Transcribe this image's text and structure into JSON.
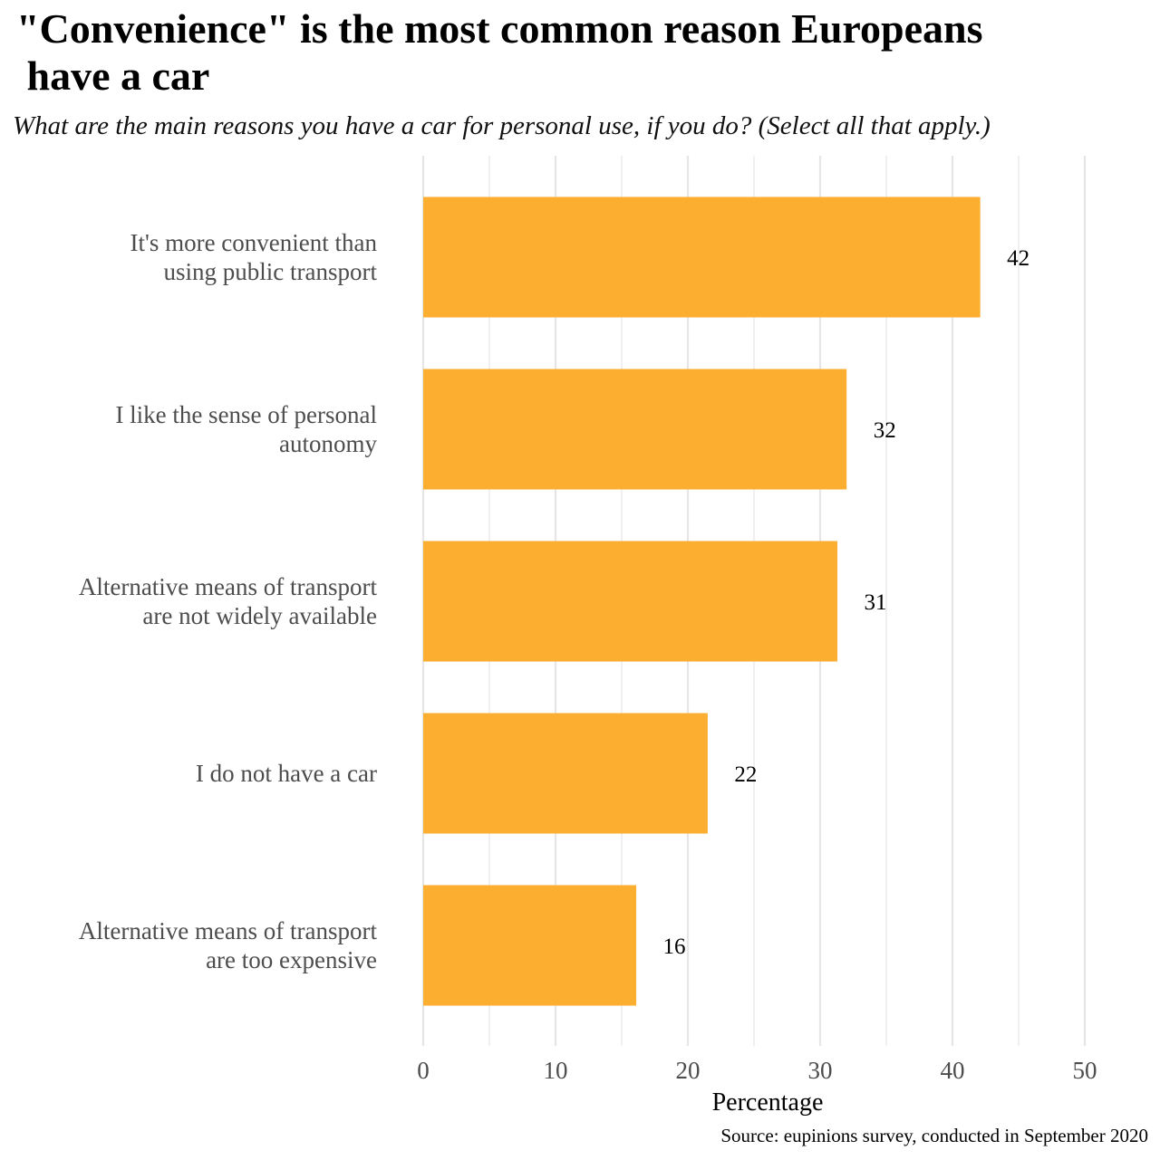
{
  "chart_data": {
    "type": "bar",
    "orientation": "horizontal",
    "title": "\"Convenience\" is the most common reason Europeans\n have a car",
    "subtitle": "What are the main reasons you have a car for personal use, if you do? (Select all that apply.)",
    "categories": [
      [
        "It's more convenient than",
        "using public transport"
      ],
      [
        "I like the sense of personal",
        "autonomy"
      ],
      [
        "Alternative means of transport",
        "are not widely available"
      ],
      [
        "I do not have a car"
      ],
      [
        "Alternative means of transport",
        "are too expensive"
      ]
    ],
    "values": [
      42.1,
      32,
      31.3,
      21.5,
      16.1
    ],
    "value_labels": [
      "42",
      "32",
      "31",
      "22",
      "16"
    ],
    "xlabel": "Percentage",
    "ylabel": "",
    "xlim": [
      0,
      50
    ],
    "xticks": [
      0,
      10,
      20,
      30,
      40,
      50
    ],
    "grid": true,
    "legend": "none",
    "source": "Source: eupinions survey, conducted in September 2020"
  },
  "colors": {
    "bar": "#FBAE30",
    "grid": "#e6e6e6",
    "category_text": "#4d4d4d",
    "value_text": "#000000",
    "title_text": "#000000"
  }
}
